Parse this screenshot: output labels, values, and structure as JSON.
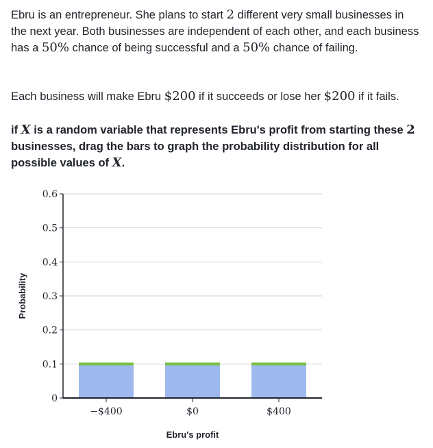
{
  "problem": {
    "p1": [
      {
        "t": "text",
        "v": "Ebru is an entrepreneur. She plans to start "
      },
      {
        "t": "math",
        "v": "2"
      },
      {
        "t": "text",
        "v": " different very small businesses in the next year. Both businesses are independent of each other, and each business has a "
      },
      {
        "t": "math",
        "v": "50%"
      },
      {
        "t": "text",
        "v": " chance of being successful and a "
      },
      {
        "t": "math",
        "v": "50%"
      },
      {
        "t": "text",
        "v": " chance of failing."
      }
    ],
    "p2": [
      {
        "t": "text",
        "v": "Each business will make Ebru "
      },
      {
        "t": "math",
        "v": "$200"
      },
      {
        "t": "text",
        "v": " if it succeeds or lose her "
      },
      {
        "t": "math",
        "v": "$200"
      },
      {
        "t": "text",
        "v": " if it fails."
      }
    ],
    "p3": [
      {
        "t": "text",
        "v": "if "
      },
      {
        "t": "mathi",
        "v": "X"
      },
      {
        "t": "text",
        "v": " is a random variable that represents Ebru's profit from starting these "
      },
      {
        "t": "math",
        "v": "2"
      },
      {
        "t": "text",
        "v": " businesses, drag the bars to graph the probability distribution for all possible values of "
      },
      {
        "t": "mathi",
        "v": "X"
      },
      {
        "t": "text",
        "v": "."
      }
    ]
  },
  "colors": {
    "bar": "#9db9ee",
    "handle": "#78c043",
    "grid": "#cfd1d4",
    "axis": "#21242c"
  },
  "chart_data": {
    "type": "bar",
    "categories": [
      "−$400",
      "$0",
      "$400"
    ],
    "values": [
      0.1,
      0.1,
      0.1
    ],
    "xlabel": "Ebru's profit",
    "ylabel": "Probability",
    "ylim": [
      0,
      0.6
    ],
    "yticks": [
      "0",
      "0.1",
      "0.2",
      "0.3",
      "0.4",
      "0.5",
      "0.6"
    ],
    "grid": true,
    "draggable": true
  }
}
